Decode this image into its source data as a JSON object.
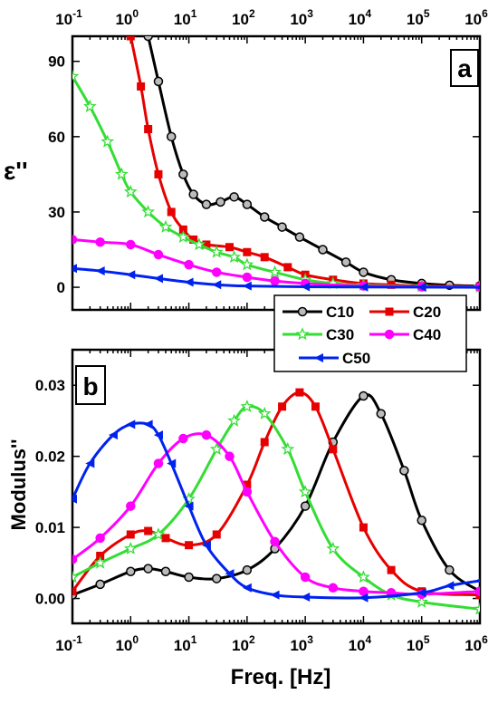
{
  "chart_data": [
    {
      "type": "line",
      "panel_label": "a",
      "xlabel": "",
      "ylabel": "ε''",
      "x_scale": "log",
      "xlim": [
        0.1,
        1000000
      ],
      "ylim": [
        -9,
        100
      ],
      "yticks": [
        "0",
        "30",
        "60",
        "90"
      ],
      "xticks_top": [
        {
          "base": "10",
          "exp": "-1"
        },
        {
          "base": "10",
          "exp": "0"
        },
        {
          "base": "10",
          "exp": "1"
        },
        {
          "base": "10",
          "exp": "2"
        },
        {
          "base": "10",
          "exp": "3"
        },
        {
          "base": "10",
          "exp": "4"
        },
        {
          "base": "10",
          "exp": "5"
        },
        {
          "base": "10",
          "exp": "6"
        }
      ],
      "series": [
        {
          "name": "C10",
          "color": "#000000",
          "marker": "circle",
          "x": [
            2,
            3,
            5,
            8,
            12,
            20,
            35,
            60,
            100,
            200,
            400,
            800,
            2000,
            5000,
            10000,
            30000,
            100000,
            300000,
            1000000
          ],
          "y": [
            100,
            82,
            60,
            45,
            37,
            33,
            34,
            36,
            33,
            28,
            24,
            20,
            15,
            10,
            6,
            3,
            1.5,
            0.8,
            0.5
          ]
        },
        {
          "name": "C20",
          "color": "#e60000",
          "marker": "square",
          "x": [
            1,
            1.5,
            2,
            3,
            5,
            8,
            12,
            20,
            50,
            100,
            200,
            500,
            1000,
            3000,
            10000,
            30000,
            100000,
            1000000
          ],
          "y": [
            100,
            80,
            63,
            45,
            30,
            23,
            19,
            17,
            16,
            14,
            12,
            8,
            5,
            3,
            1.5,
            1,
            0.5,
            0.3
          ]
        },
        {
          "name": "C30",
          "color": "#33dd33",
          "marker": "star",
          "x": [
            0.1,
            0.2,
            0.4,
            0.7,
            1,
            2,
            4,
            8,
            15,
            30,
            60,
            100,
            300,
            1000,
            3000,
            10000,
            100000,
            1000000
          ],
          "y": [
            84,
            72,
            58,
            45,
            38,
            30,
            24,
            20,
            17,
            14,
            12,
            9,
            6,
            3,
            1.5,
            0.8,
            0.3,
            0.1
          ]
        },
        {
          "name": "C40",
          "color": "#ff00ff",
          "marker": "circle",
          "x": [
            0.1,
            0.3,
            1,
            3,
            10,
            30,
            100,
            300,
            1000,
            10000,
            100000,
            1000000
          ],
          "y": [
            19,
            18,
            17,
            13,
            9,
            6,
            4,
            2.5,
            1.5,
            0.5,
            0.2,
            0.1
          ]
        },
        {
          "name": "C50",
          "color": "#0022ee",
          "marker": "triangle",
          "x": [
            0.1,
            0.3,
            1,
            3,
            10,
            30,
            100,
            1000,
            10000,
            100000,
            1000000
          ],
          "y": [
            7.5,
            6.5,
            5,
            3.5,
            2,
            1,
            0.5,
            0.2,
            0.1,
            0.05,
            0
          ]
        }
      ]
    },
    {
      "type": "line",
      "panel_label": "b",
      "xlabel": "Freq. [Hz]",
      "ylabel": "Modulus''",
      "x_scale": "log",
      "xlim": [
        0.1,
        1000000
      ],
      "ylim": [
        -0.0035,
        0.035
      ],
      "yticks": [
        "0.00",
        "0.01",
        "0.02",
        "0.03"
      ],
      "xticks_bottom": [
        {
          "base": "10",
          "exp": "-1"
        },
        {
          "base": "10",
          "exp": "0"
        },
        {
          "base": "10",
          "exp": "1"
        },
        {
          "base": "10",
          "exp": "2"
        },
        {
          "base": "10",
          "exp": "3"
        },
        {
          "base": "10",
          "exp": "4"
        },
        {
          "base": "10",
          "exp": "5"
        },
        {
          "base": "10",
          "exp": "6"
        }
      ],
      "legend": {
        "placement": "top-right",
        "entries": [
          "C10",
          "C20",
          "C30",
          "C40",
          "C50"
        ]
      },
      "series": [
        {
          "name": "C10",
          "color": "#000000",
          "marker": "circle",
          "x": [
            0.1,
            0.3,
            1,
            2,
            4,
            10,
            30,
            100,
            300,
            1000,
            3000,
            10000,
            20000,
            50000,
            100000,
            300000,
            1000000
          ],
          "y": [
            0.0005,
            0.002,
            0.0038,
            0.0042,
            0.0038,
            0.003,
            0.0028,
            0.004,
            0.007,
            0.013,
            0.022,
            0.0285,
            0.026,
            0.018,
            0.011,
            0.004,
            0.001
          ]
        },
        {
          "name": "C20",
          "color": "#e60000",
          "marker": "square",
          "x": [
            0.1,
            0.3,
            1,
            2,
            4,
            10,
            30,
            100,
            200,
            400,
            800,
            1500,
            3000,
            10000,
            30000,
            100000,
            1000000
          ],
          "y": [
            0.001,
            0.006,
            0.009,
            0.0095,
            0.0085,
            0.0075,
            0.009,
            0.016,
            0.022,
            0.027,
            0.029,
            0.027,
            0.021,
            0.01,
            0.004,
            0.001,
            0.0005
          ]
        },
        {
          "name": "C30",
          "color": "#33dd33",
          "marker": "star",
          "x": [
            0.1,
            0.3,
            1,
            3,
            10,
            30,
            60,
            100,
            200,
            500,
            1000,
            3000,
            10000,
            30000,
            100000,
            1000000
          ],
          "y": [
            0.003,
            0.005,
            0.007,
            0.009,
            0.014,
            0.021,
            0.025,
            0.027,
            0.026,
            0.021,
            0.015,
            0.007,
            0.003,
            0.0005,
            -0.0005,
            -0.0015
          ]
        },
        {
          "name": "C40",
          "color": "#ff00ff",
          "marker": "circle",
          "x": [
            0.1,
            0.3,
            1,
            3,
            8,
            20,
            50,
            100,
            300,
            1000,
            3000,
            10000,
            30000,
            100000,
            1000000
          ],
          "y": [
            0.0055,
            0.0085,
            0.013,
            0.019,
            0.0225,
            0.023,
            0.02,
            0.015,
            0.008,
            0.003,
            0.0015,
            0.001,
            0.0008,
            0.0006,
            0.001
          ]
        },
        {
          "name": "C50",
          "color": "#0022ee",
          "marker": "triangle",
          "x": [
            0.1,
            0.2,
            0.5,
            1,
            2,
            3,
            5,
            10,
            20,
            50,
            100,
            300,
            1000,
            10000,
            100000,
            300000,
            1000000
          ],
          "y": [
            0.014,
            0.019,
            0.023,
            0.0245,
            0.0245,
            0.023,
            0.019,
            0.013,
            0.0075,
            0.0035,
            0.0015,
            0.0005,
            0.0002,
            0.0001,
            0.0008,
            0.0018,
            0.0025
          ]
        }
      ]
    }
  ]
}
